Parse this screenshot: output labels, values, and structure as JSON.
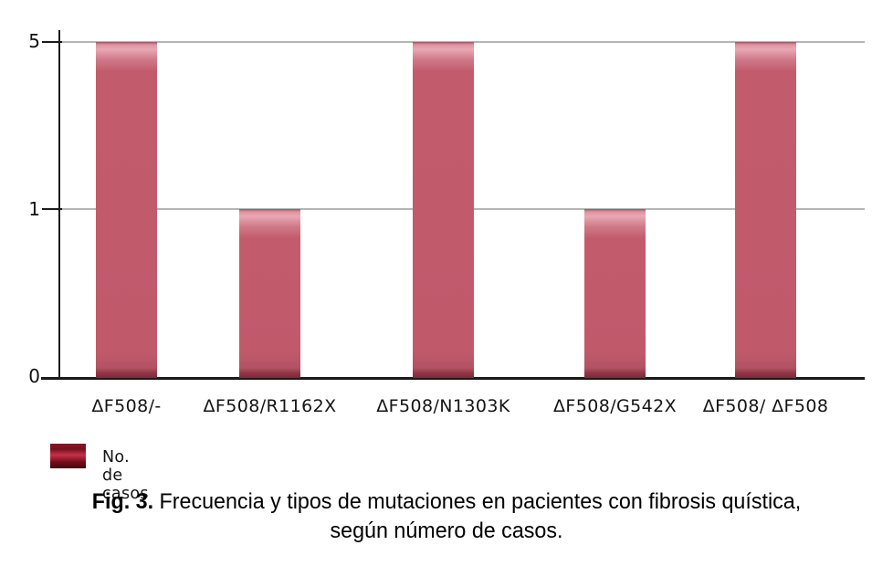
{
  "chart": {
    "legend": {
      "label": "No. de casos",
      "swatch_color": "#8c1526",
      "position": "bottom-left"
    },
    "colors": {
      "bar_main": "#c05a6b",
      "bar_highlight": "#e8a8b3",
      "bar_shadow": "#7d2937",
      "gridline": "#b5b5b5",
      "axis": "#1a1a1a"
    }
  },
  "caption": {
    "bold": "Fig. 3.",
    "line1_rest": " Frecuencia y tipos de mutaciones en pacientes con fibrosis quística,",
    "line2": "según número de casos."
  },
  "chart_data": {
    "type": "bar",
    "title": "",
    "xlabel": "",
    "ylabel": "",
    "categories": [
      "ΔF508/-",
      "ΔF508/R1162X",
      "ΔF508/N1303K",
      "ΔF508/G542X",
      "ΔF508/ ΔF508"
    ],
    "values": [
      5,
      1,
      5,
      1,
      5
    ],
    "series_name": "No. de casos",
    "y_ticks": [
      "5",
      "1",
      "0"
    ],
    "y_tick_values": [
      5,
      1,
      0
    ],
    "ylim": [
      0,
      5
    ],
    "y_axis_note": "non-linear axis: tick 1 is rendered midway between 0 and 5",
    "grid": "horizontal gridlines at y=1 and y=5",
    "legend_position": "bottom-left"
  }
}
